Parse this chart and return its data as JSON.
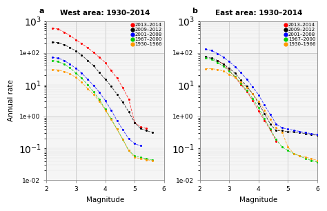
{
  "title_left": "West area: 1930–2014",
  "title_right": "East area: 1930–2014",
  "xlabel": "Magnitude",
  "ylabel": "Annual rate",
  "label_a": "a",
  "label_b": "b",
  "legend_labels": [
    "2013–2014",
    "2009–2012",
    "2001–2008",
    "1967–2000",
    "1930–1966"
  ],
  "colors": [
    "#ff0000",
    "#000000",
    "#0000ff",
    "#00cc00",
    "#ff9900"
  ],
  "west": {
    "2013-2014": {
      "x": [
        2.2,
        2.4,
        2.6,
        2.8,
        3.0,
        3.2,
        3.4,
        3.6,
        3.8,
        4.0,
        4.2,
        4.4,
        4.6,
        4.8,
        5.0,
        5.2,
        5.4
      ],
      "y": [
        600,
        560,
        450,
        350,
        260,
        195,
        145,
        105,
        72,
        50,
        28,
        16,
        8,
        3.5,
        0.65,
        0.48,
        0.42
      ]
    },
    "2009-2012": {
      "x": [
        2.2,
        2.4,
        2.6,
        2.8,
        3.0,
        3.2,
        3.4,
        3.6,
        3.8,
        4.0,
        4.2,
        4.4,
        4.6,
        4.8,
        5.0,
        5.2,
        5.4,
        5.6
      ],
      "y": [
        220,
        210,
        180,
        148,
        115,
        85,
        58,
        40,
        24,
        15,
        9,
        5,
        2.8,
        1.4,
        0.65,
        0.42,
        0.36,
        0.32
      ]
    },
    "2001-2008": {
      "x": [
        2.2,
        2.4,
        2.6,
        2.8,
        3.0,
        3.2,
        3.4,
        3.6,
        3.8,
        4.0,
        4.2,
        4.4,
        4.6,
        4.8,
        5.0,
        5.2
      ],
      "y": [
        72,
        68,
        58,
        44,
        33,
        23,
        15,
        9.5,
        5.8,
        3.2,
        1.6,
        0.75,
        0.38,
        0.2,
        0.14,
        0.12
      ]
    },
    "1967-2000": {
      "x": [
        2.2,
        2.4,
        2.6,
        2.8,
        3.0,
        3.2,
        3.4,
        3.6,
        3.8,
        4.0,
        4.2,
        4.4,
        4.6,
        4.8,
        5.0,
        5.2,
        5.4,
        5.6
      ],
      "y": [
        58,
        53,
        44,
        34,
        23,
        16,
        10,
        6,
        3.4,
        1.7,
        0.85,
        0.4,
        0.19,
        0.085,
        0.058,
        0.052,
        0.047,
        0.043
      ]
    },
    "1930-1966": {
      "x": [
        2.2,
        2.4,
        2.6,
        2.8,
        3.0,
        3.2,
        3.4,
        3.6,
        3.8,
        4.0,
        4.2,
        4.4,
        4.6,
        4.8,
        5.0,
        5.2,
        5.4,
        5.6
      ],
      "y": [
        30,
        29,
        26,
        22,
        17,
        12,
        7.5,
        5,
        3.0,
        1.6,
        0.8,
        0.4,
        0.19,
        0.085,
        0.052,
        0.047,
        0.044,
        0.041
      ]
    }
  },
  "east": {
    "2013-2014": {
      "x": [
        2.6,
        2.8,
        3.0,
        3.2,
        3.4,
        3.6,
        3.8,
        4.0,
        4.2,
        4.4,
        4.6
      ],
      "y": [
        58,
        44,
        28,
        17,
        10,
        6,
        3.2,
        1.5,
        0.75,
        0.38,
        0.17
      ]
    },
    "2009-2012": {
      "x": [
        2.2,
        2.4,
        2.6,
        2.8,
        3.0,
        3.2,
        3.4,
        3.6,
        3.8,
        4.0,
        4.2,
        4.4,
        4.6,
        4.8,
        5.0,
        5.2,
        5.4,
        5.6,
        5.8,
        6.0
      ],
      "y": [
        75,
        68,
        58,
        44,
        33,
        23,
        14,
        9,
        5.2,
        2.6,
        1.25,
        0.58,
        0.36,
        0.36,
        0.33,
        0.33,
        0.31,
        0.29,
        0.27,
        0.26
      ]
    },
    "2001-2008": {
      "x": [
        2.2,
        2.4,
        2.6,
        2.8,
        3.0,
        3.2,
        3.4,
        3.6,
        3.8,
        4.0,
        4.2,
        4.4,
        4.6,
        4.8,
        5.0,
        5.2,
        5.4,
        5.6,
        5.8,
        6.0
      ],
      "y": [
        130,
        118,
        96,
        74,
        53,
        37,
        24,
        15,
        8.5,
        4.8,
        2.3,
        1.15,
        0.58,
        0.44,
        0.4,
        0.37,
        0.34,
        0.31,
        0.29,
        0.27
      ]
    },
    "1967-2000": {
      "x": [
        2.2,
        2.4,
        2.6,
        2.8,
        3.0,
        3.2,
        3.4,
        3.6,
        3.8,
        4.0,
        4.2,
        4.4,
        4.6,
        4.8,
        5.0,
        5.2,
        5.4,
        5.6,
        5.8,
        6.0
      ],
      "y": [
        68,
        63,
        50,
        38,
        27,
        18,
        11,
        6.5,
        3.7,
        1.9,
        0.85,
        0.4,
        0.19,
        0.11,
        0.085,
        0.068,
        0.058,
        0.047,
        0.042,
        0.037
      ]
    },
    "1930-1966": {
      "x": [
        2.2,
        2.4,
        2.6,
        2.8,
        3.0,
        3.2,
        3.4,
        3.6,
        3.8,
        4.0,
        4.2,
        4.4,
        4.6,
        4.8,
        5.0,
        5.2,
        5.4,
        5.6,
        5.8,
        6.0
      ],
      "y": [
        32,
        32,
        30,
        27,
        21,
        17,
        12,
        8,
        5.1,
        3.0,
        1.6,
        0.8,
        0.44,
        0.32,
        0.11,
        0.068,
        0.058,
        0.053,
        0.047,
        0.042
      ]
    }
  },
  "xlim": [
    2,
    6
  ],
  "ylim": [
    0.01,
    1000
  ],
  "xticks": [
    2,
    3,
    4,
    5,
    6
  ],
  "yticks": [
    0.01,
    1.0,
    100.0
  ],
  "ytick_labels": [
    "1e-02",
    "1e+00",
    "1e+02"
  ],
  "bg_color": "#f5f5f5"
}
